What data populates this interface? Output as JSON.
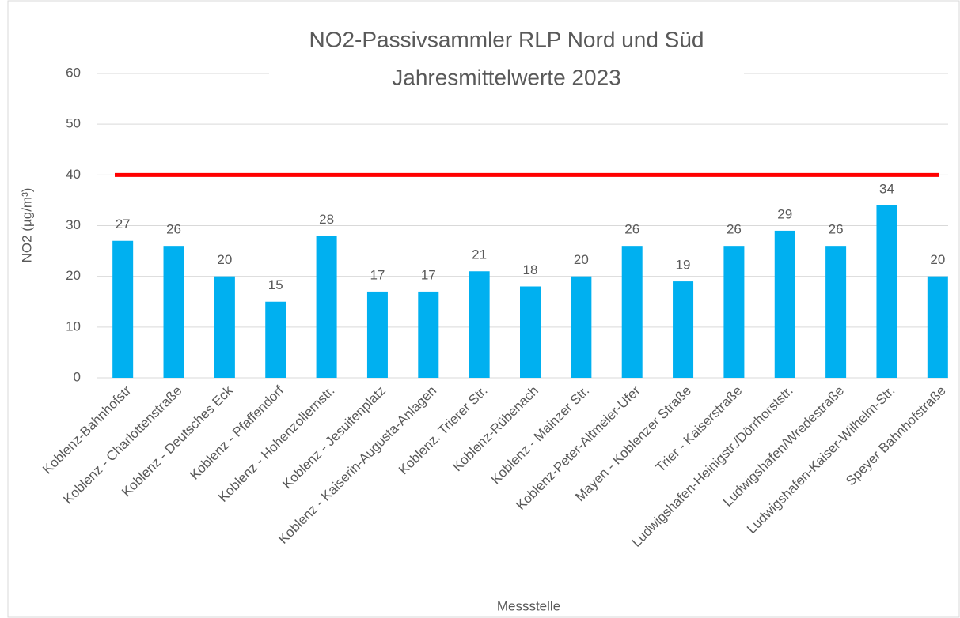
{
  "chart_data": {
    "type": "bar",
    "title": "NO2-Passivsammler RLP Nord und Süd",
    "subtitle": "Jahresmittelwerte 2023",
    "x_label": "Messstelle",
    "y_label": "NO2 (µg/m³)",
    "categories": [
      "Koblenz-Bahnhofstr",
      "Koblenz - Charlottenstraße",
      "Koblenz - Deutsches Eck",
      "Koblenz - Pfaffendorf",
      "Koblenz - Hohenzollernstr.",
      "Koblenz - Jesuitenplatz",
      "Koblenz - Kaiserin-Augusta-Anlagen",
      "Koblenz. Trierer Str.",
      "Koblenz-Rübenach",
      "Koblenz - Mainzer Str.",
      "Koblenz-Peter-Altmeier-Ufer",
      "Mayen - Koblenzer Straße",
      "Trier - Kaiserstraße",
      "Ludwigshafen-Heinigstr./Dörrhorststr.",
      "Ludwigshafen/Wredestraße",
      "Ludwigshafen-Kaiser-Wilhelm-Str.",
      "Speyer Bahnhofstraße"
    ],
    "values": [
      27,
      26,
      20,
      15,
      28,
      17,
      17,
      21,
      18,
      20,
      26,
      19,
      26,
      29,
      26,
      34,
      20
    ],
    "color": "#00b0f0",
    "reference_line": {
      "value": 40,
      "color": "#ff0000"
    },
    "ylim": [
      0,
      60
    ],
    "yticks": [
      0,
      10,
      20,
      30,
      40,
      50,
      60
    ],
    "grid": true
  }
}
